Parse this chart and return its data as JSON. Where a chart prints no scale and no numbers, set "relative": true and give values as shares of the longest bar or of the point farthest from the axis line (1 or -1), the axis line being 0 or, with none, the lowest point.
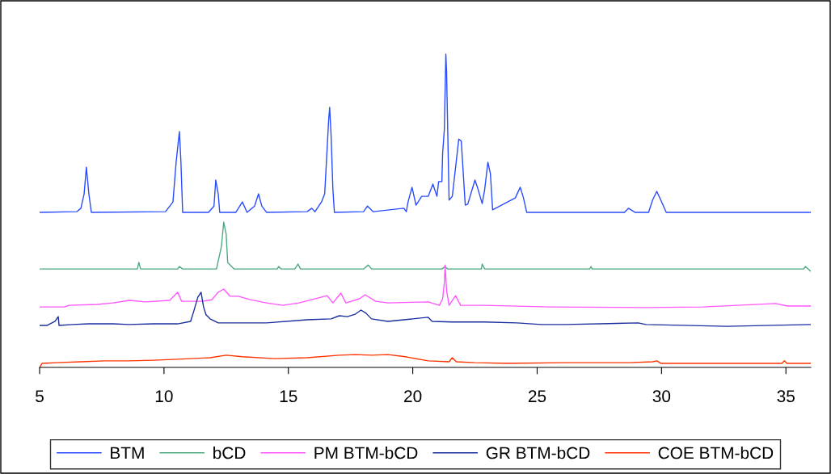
{
  "chart_data": {
    "type": "line",
    "relative": true,
    "xlim": [
      5,
      36
    ],
    "xticks": [
      5,
      10,
      15,
      20,
      25,
      30,
      35
    ],
    "tick_labels": "x",
    "grid": false,
    "legend": "bottom",
    "marker": "none",
    "line_style": "solid",
    "series": [
      {
        "name": "BTM",
        "color": "#2a4bff",
        "x": [
          5,
          6.49,
          6.66,
          6.79,
          6.88,
          6.98,
          7.08,
          10.06,
          10.36,
          10.49,
          10.62,
          10.68,
          10.75,
          11.79,
          12.01,
          12.08,
          12.18,
          12.24,
          12.89,
          13.15,
          13.34,
          13.64,
          13.8,
          13.93,
          14.12,
          15.75,
          15.94,
          16.07,
          16.33,
          16.46,
          16.53,
          16.62,
          16.66,
          16.72,
          16.79,
          16.85,
          18.02,
          18.18,
          18.41,
          19.64,
          19.74,
          19.81,
          19.97,
          20.13,
          20.36,
          20.62,
          20.81,
          20.97,
          21.04,
          21.17,
          21.2,
          21.27,
          21.33,
          21.36,
          21.46,
          21.59,
          21.85,
          21.95,
          22.11,
          22.21,
          22.5,
          22.6,
          22.79,
          22.89,
          23.02,
          23.12,
          23.21,
          24.12,
          24.32,
          24.45,
          24.58,
          28.51,
          28.67,
          28.93,
          29.48,
          29.64,
          29.81,
          29.97,
          30.19,
          36
        ],
        "values": [
          0.495,
          0.497,
          0.508,
          0.554,
          0.639,
          0.554,
          0.495,
          0.497,
          0.528,
          0.657,
          0.753,
          0.657,
          0.495,
          0.495,
          0.515,
          0.598,
          0.554,
          0.495,
          0.495,
          0.528,
          0.495,
          0.515,
          0.554,
          0.515,
          0.495,
          0.497,
          0.508,
          0.497,
          0.528,
          0.554,
          0.657,
          0.791,
          0.83,
          0.735,
          0.567,
          0.495,
          0.497,
          0.515,
          0.497,
          0.508,
          0.497,
          0.528,
          0.575,
          0.518,
          0.546,
          0.546,
          0.585,
          0.546,
          0.593,
          0.593,
          0.683,
          0.76,
          1,
          0.941,
          0.534,
          0.546,
          0.729,
          0.722,
          0.518,
          0.521,
          0.598,
          0.575,
          0.523,
          0.567,
          0.655,
          0.619,
          0.503,
          0.541,
          0.575,
          0.541,
          0.495,
          0.495,
          0.508,
          0.495,
          0.495,
          0.534,
          0.562,
          0.534,
          0.495,
          0.495
        ]
      },
      {
        "name": "bCD",
        "color": "#4daa80",
        "x": [
          5,
          8.93,
          8.99,
          9.06,
          10.55,
          10.62,
          10.75,
          12.11,
          12.31,
          12.4,
          12.5,
          12.56,
          12.82,
          14.55,
          14.61,
          14.71,
          15.26,
          15.39,
          15.49,
          18.02,
          18.21,
          18.34,
          21.17,
          21.3,
          21.4,
          22.76,
          22.79,
          22.89,
          27.11,
          27.17,
          27.21,
          35.71,
          35.78,
          36
        ],
        "values": [
          0.314,
          0.314,
          0.335,
          0.314,
          0.314,
          0.322,
          0.314,
          0.314,
          0.387,
          0.464,
          0.425,
          0.335,
          0.314,
          0.314,
          0.322,
          0.314,
          0.314,
          0.33,
          0.314,
          0.314,
          0.327,
          0.314,
          0.314,
          0.322,
          0.314,
          0.314,
          0.33,
          0.314,
          0.314,
          0.322,
          0.314,
          0.314,
          0.322,
          0.307
        ]
      },
      {
        "name": "PM BTM-bCD",
        "color": "#ff55ff",
        "x": [
          5,
          6.01,
          6.17,
          7.31,
          7.95,
          8.6,
          9.25,
          10.23,
          10.55,
          10.71,
          11.53,
          11.92,
          12.18,
          12.4,
          12.66,
          12.99,
          13.47,
          14.12,
          14.77,
          15.42,
          16.56,
          16.79,
          17.11,
          17.31,
          17.86,
          18.08,
          18.51,
          19.0,
          20.62,
          21.07,
          21.2,
          21.27,
          21.3,
          21.36,
          21.46,
          21.72,
          21.92,
          22.89,
          25.49,
          29.38,
          31.66,
          34.58,
          35.06,
          36
        ],
        "values": [
          0.193,
          0.193,
          0.198,
          0.201,
          0.206,
          0.214,
          0.209,
          0.214,
          0.24,
          0.211,
          0.211,
          0.216,
          0.24,
          0.25,
          0.227,
          0.227,
          0.216,
          0.206,
          0.198,
          0.206,
          0.229,
          0.206,
          0.237,
          0.206,
          0.219,
          0.232,
          0.211,
          0.206,
          0.209,
          0.198,
          0.219,
          0.27,
          0.327,
          0.245,
          0.198,
          0.229,
          0.198,
          0.198,
          0.193,
          0.191,
          0.193,
          0.204,
          0.196,
          0.196
        ]
      },
      {
        "name": "GR BTM-bCD",
        "color": "#1a2e9e",
        "x": [
          5,
          5.29,
          5.62,
          5.75,
          5.78,
          6.33,
          6.98,
          7.95,
          8.6,
          9.58,
          10.55,
          11.07,
          11.2,
          11.36,
          11.49,
          11.59,
          11.69,
          11.85,
          12.18,
          13.15,
          14.12,
          15.75,
          16.72,
          17.05,
          17.37,
          17.69,
          17.92,
          18.12,
          18.34,
          19.0,
          19.64,
          20.62,
          20.78,
          21.59,
          22.89,
          24.19,
          25.16,
          26.14,
          29.06,
          29.38,
          32.63,
          36
        ],
        "values": [
          0.134,
          0.134,
          0.147,
          0.162,
          0.134,
          0.137,
          0.139,
          0.139,
          0.137,
          0.139,
          0.139,
          0.147,
          0.18,
          0.224,
          0.24,
          0.193,
          0.168,
          0.155,
          0.142,
          0.142,
          0.142,
          0.152,
          0.155,
          0.165,
          0.162,
          0.17,
          0.183,
          0.173,
          0.155,
          0.147,
          0.152,
          0.16,
          0.147,
          0.145,
          0.145,
          0.142,
          0.137,
          0.137,
          0.142,
          0.137,
          0.131,
          0.137
        ]
      },
      {
        "name": "COE BTM-bCD",
        "color": "#ff3300",
        "x": [
          5,
          5.1,
          5.68,
          6.66,
          7.63,
          8.6,
          9.58,
          10.55,
          11.85,
          12.5,
          13.15,
          14.45,
          15.75,
          17.05,
          17.7,
          18.34,
          19.0,
          19.7,
          20.62,
          21.46,
          21.59,
          21.75,
          22.5,
          23.8,
          26.14,
          28.7,
          29.64,
          29.81,
          29.97,
          34.84,
          34.94,
          35.04,
          36
        ],
        "values": [
          0,
          0.013,
          0.015,
          0.018,
          0.021,
          0.021,
          0.023,
          0.026,
          0.031,
          0.039,
          0.034,
          0.028,
          0.031,
          0.039,
          0.041,
          0.039,
          0.041,
          0.034,
          0.021,
          0.018,
          0.031,
          0.018,
          0.015,
          0.013,
          0.015,
          0.015,
          0.018,
          0.021,
          0.013,
          0.013,
          0.021,
          0.013,
          0.013
        ]
      }
    ]
  }
}
